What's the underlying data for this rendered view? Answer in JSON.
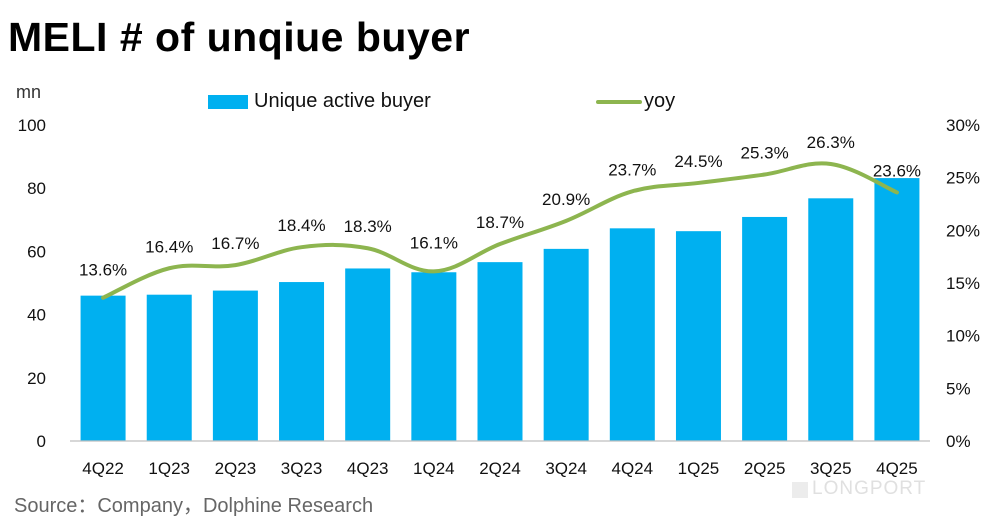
{
  "title": "MELI # of unqiue buyer",
  "unit": "mn",
  "legend": {
    "bar_label": "Unique active buyer",
    "line_label": "yoy"
  },
  "source": "Source：Company，Dolphine Research",
  "watermark": "LONGPORT",
  "colors": {
    "bar": "#00b0f0",
    "line": "#8db54f"
  },
  "chart_data": {
    "type": "bar",
    "categories": [
      "4Q22",
      "1Q23",
      "2Q23",
      "3Q23",
      "4Q23",
      "1Q24",
      "2Q24",
      "3Q24",
      "4Q24",
      "1Q25",
      "2Q25",
      "3Q25",
      "4Q25"
    ],
    "series": [
      {
        "name": "Unique active buyer",
        "type": "bar",
        "axis": "left",
        "values": [
          46,
          46.3,
          47.6,
          50.3,
          54.6,
          53.4,
          56.6,
          60.8,
          67.3,
          66.4,
          70.9,
          76.8,
          83.2
        ]
      },
      {
        "name": "yoy",
        "type": "line",
        "axis": "right",
        "values": [
          13.6,
          16.4,
          16.7,
          18.4,
          18.3,
          16.1,
          18.7,
          20.9,
          23.7,
          24.5,
          25.3,
          26.3,
          23.6
        ],
        "labels": [
          "13.6%",
          "16.4%",
          "16.7%",
          "18.4%",
          "18.3%",
          "16.1%",
          "18.7%",
          "20.9%",
          "23.7%",
          "24.5%",
          "25.3%",
          "26.3%",
          "23.6%"
        ]
      }
    ],
    "ylim": [
      0,
      100
    ],
    "y_ticks": [
      "0",
      "20",
      "40",
      "60",
      "80",
      "100"
    ],
    "y2lim": [
      0,
      30
    ],
    "y2_ticks": [
      "0%",
      "5%",
      "10%",
      "15%",
      "20%",
      "25%",
      "30%"
    ],
    "grid": false,
    "legend_position": "top"
  }
}
